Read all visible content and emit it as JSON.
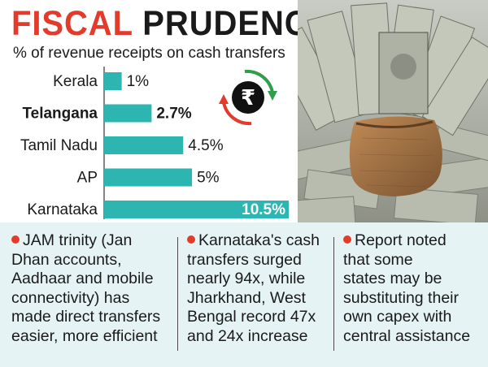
{
  "title": {
    "word1": "FISCAL",
    "word2": "PRUDENCE"
  },
  "subtitle": "% of revenue receipts on cash transfers",
  "chart_data": {
    "type": "bar",
    "orientation": "horizontal",
    "title": "FISCAL PRUDENCE",
    "subtitle": "% of revenue receipts on cash transfers",
    "categories": [
      "Kerala",
      "Telangana",
      "Tamil Nadu",
      "AP",
      "Karnataka"
    ],
    "values": [
      1,
      2.7,
      4.5,
      5,
      10.5
    ],
    "value_labels": [
      "1%",
      "2.7%",
      "4.5%",
      "5%",
      "10.5%"
    ],
    "highlight_bold": [
      "Telangana"
    ],
    "xlim": [
      0,
      10.5
    ],
    "grid": false,
    "legend": "none",
    "bar_color": "#2db5b2"
  },
  "notes": [
    {
      "lines": [
        "JAM trinity (Jan",
        "Dhan accounts,",
        "Aadhaar and mobile",
        "connectivity) has",
        "made direct transfers",
        "easier, more efficient"
      ]
    },
    {
      "lines": [
        "Karnataka's cash",
        "transfers surged",
        "nearly 94x, while",
        "Jharkhand, West",
        "Bengal record 47x",
        "and 24x increase"
      ]
    },
    {
      "lines": [
        "Report noted",
        "that some",
        "states may be",
        "substituting their",
        "own capex with",
        "central assistance"
      ]
    }
  ],
  "icons": {
    "cycle": "rupee-cycle-icon",
    "photo": "currency-bag-photo"
  },
  "colors": {
    "accent_red": "#e23b2c",
    "bar": "#2db5b2",
    "notes_bg": "#e6f3f4",
    "arrow_green": "#2e9e4a"
  }
}
